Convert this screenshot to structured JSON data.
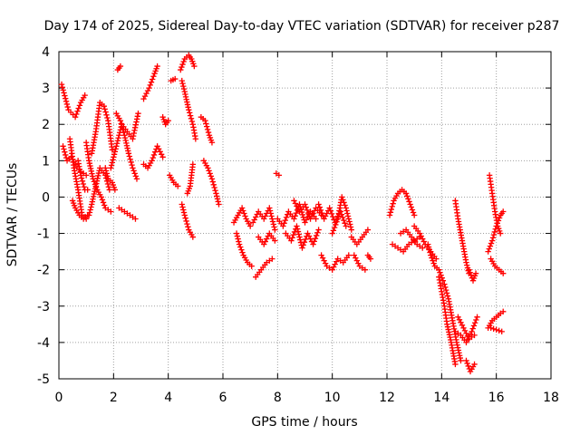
{
  "chart_data": {
    "type": "scatter",
    "title": "Day 174 of 2025, Sidereal Day-to-day VTEC variation (SDTVAR) for receiver p287",
    "xlabel": "GPS time / hours",
    "ylabel": "SDTVAR / TECUs",
    "xlim": [
      0,
      18
    ],
    "ylim": [
      -5,
      4
    ],
    "xticks": [
      "0",
      "2",
      "4",
      "6",
      "8",
      "10",
      "12",
      "14",
      "16",
      "18"
    ],
    "yticks": [
      "4",
      "3",
      "2",
      "1",
      "0",
      "-1",
      "-2",
      "-3",
      "-4",
      "-5"
    ],
    "grid": true,
    "marker": "+",
    "color": "#ff0000",
    "series": [
      {
        "name": "t1",
        "x": [
          0.1,
          0.35,
          0.6,
          0.8,
          0.95
        ],
        "y": [
          3.1,
          2.4,
          2.2,
          2.6,
          2.8
        ]
      },
      {
        "name": "t2",
        "x": [
          0.15,
          0.3,
          0.45,
          0.6,
          0.8,
          1.0
        ],
        "y": [
          1.4,
          1.0,
          1.1,
          0.9,
          0.7,
          0.6
        ]
      },
      {
        "name": "t3",
        "x": [
          0.4,
          0.55,
          0.7,
          0.85,
          1.0
        ],
        "y": [
          1.6,
          0.8,
          0.2,
          -0.5,
          -0.6
        ]
      },
      {
        "name": "t4",
        "x": [
          0.5,
          0.6,
          0.75,
          0.9,
          1.05
        ],
        "y": [
          -0.1,
          -0.3,
          -0.5,
          -0.6,
          -0.5
        ]
      },
      {
        "name": "t5",
        "x": [
          0.7,
          0.8,
          0.95,
          1.05
        ],
        "y": [
          1.0,
          0.6,
          0.2,
          0.2
        ]
      },
      {
        "name": "t6",
        "x": [
          1.1,
          1.2,
          1.35,
          1.5,
          1.7,
          1.85
        ],
        "y": [
          -0.5,
          -0.2,
          0.3,
          0.8,
          0.6,
          0.2
        ]
      },
      {
        "name": "t7",
        "x": [
          1.2,
          1.35,
          1.5,
          1.65,
          1.8,
          1.95
        ],
        "y": [
          1.2,
          1.8,
          2.6,
          2.5,
          2.1,
          1.3
        ]
      },
      {
        "name": "t8",
        "x": [
          1.0,
          1.1,
          1.25,
          1.4,
          1.55,
          1.7,
          1.9
        ],
        "y": [
          1.5,
          1.0,
          0.5,
          0.2,
          0.0,
          -0.3,
          -0.4
        ]
      },
      {
        "name": "t9",
        "x": [
          1.7,
          1.8,
          1.95,
          2.05
        ],
        "y": [
          0.8,
          0.5,
          0.4,
          0.2
        ]
      },
      {
        "name": "t10",
        "x": [
          1.9,
          2.1,
          2.3,
          2.5,
          2.7,
          2.9
        ],
        "y": [
          0.8,
          1.4,
          2.0,
          1.8,
          1.6,
          2.3
        ]
      },
      {
        "name": "t11",
        "x": [
          2.1,
          2.25,
          2.4,
          2.55,
          2.7,
          2.85
        ],
        "y": [
          2.3,
          2.1,
          1.7,
          1.2,
          0.8,
          0.5
        ]
      },
      {
        "name": "t12",
        "x": [
          2.2,
          2.4,
          2.6,
          2.8
        ],
        "y": [
          -0.3,
          -0.4,
          -0.5,
          -0.6
        ]
      },
      {
        "name": "t13",
        "x": [
          2.15,
          2.25
        ],
        "y": [
          3.5,
          3.6
        ]
      },
      {
        "name": "t14",
        "x": [
          3.1,
          3.3,
          3.5,
          3.6
        ],
        "y": [
          2.7,
          3.0,
          3.4,
          3.6
        ]
      },
      {
        "name": "t15",
        "x": [
          3.1,
          3.25,
          3.4,
          3.6,
          3.8
        ],
        "y": [
          0.9,
          0.8,
          1.0,
          1.4,
          1.1
        ]
      },
      {
        "name": "t16",
        "x": [
          3.8,
          3.9,
          4.0
        ],
        "y": [
          2.2,
          2.0,
          2.1
        ]
      },
      {
        "name": "t17",
        "x": [
          4.1,
          4.25
        ],
        "y": [
          3.2,
          3.25
        ]
      },
      {
        "name": "t18",
        "x": [
          4.05,
          4.2,
          4.35
        ],
        "y": [
          0.6,
          0.4,
          0.3
        ]
      },
      {
        "name": "t19",
        "x": [
          4.45,
          4.6,
          4.75,
          4.85,
          4.95
        ],
        "y": [
          3.5,
          3.8,
          3.9,
          3.8,
          3.6
        ]
      },
      {
        "name": "t20",
        "x": [
          4.5,
          4.6,
          4.75,
          4.9,
          5.0
        ],
        "y": [
          3.2,
          2.9,
          2.4,
          2.0,
          1.6
        ]
      },
      {
        "name": "t21",
        "x": [
          4.5,
          4.6,
          4.75,
          4.9
        ],
        "y": [
          -0.2,
          -0.5,
          -0.9,
          -1.1
        ]
      },
      {
        "name": "t22",
        "x": [
          4.7,
          4.8,
          4.9
        ],
        "y": [
          0.1,
          0.3,
          0.9
        ]
      },
      {
        "name": "t23",
        "x": [
          5.2,
          5.35,
          5.5,
          5.6
        ],
        "y": [
          2.2,
          2.1,
          1.7,
          1.5
        ]
      },
      {
        "name": "t24",
        "x": [
          5.3,
          5.45,
          5.6,
          5.75,
          5.85
        ],
        "y": [
          1.0,
          0.8,
          0.5,
          0.1,
          -0.2
        ]
      },
      {
        "name": "t25",
        "x": [
          6.4,
          6.55,
          6.7,
          6.85,
          7.0
        ],
        "y": [
          -0.7,
          -0.5,
          -0.3,
          -0.6,
          -0.8
        ]
      },
      {
        "name": "t26",
        "x": [
          6.5,
          6.6,
          6.75,
          6.9,
          7.05
        ],
        "y": [
          -1.0,
          -1.3,
          -1.6,
          -1.8,
          -1.9
        ]
      },
      {
        "name": "t27",
        "x": [
          7.1,
          7.3,
          7.5,
          7.7,
          7.9
        ],
        "y": [
          -0.7,
          -0.4,
          -0.6,
          -0.3,
          -0.9
        ]
      },
      {
        "name": "t28",
        "x": [
          7.2,
          7.4,
          7.6,
          7.8
        ],
        "y": [
          -2.2,
          -2.0,
          -1.8,
          -1.7
        ]
      },
      {
        "name": "t29",
        "x": [
          7.3,
          7.5,
          7.7,
          7.9
        ],
        "y": [
          -1.1,
          -1.3,
          -1.0,
          -1.2
        ]
      },
      {
        "name": "t30",
        "x": [
          7.95,
          8.05
        ],
        "y": [
          0.65,
          0.6
        ]
      },
      {
        "name": "t31",
        "x": [
          8.0,
          8.2,
          8.4,
          8.6,
          8.8,
          9.0,
          9.2,
          9.4
        ],
        "y": [
          -0.6,
          -0.8,
          -0.4,
          -0.6,
          -0.2,
          -0.7,
          -0.4,
          -0.6
        ]
      },
      {
        "name": "t32",
        "x": [
          8.3,
          8.5,
          8.7,
          8.9,
          9.1,
          9.3,
          9.5
        ],
        "y": [
          -1.0,
          -1.2,
          -0.8,
          -1.4,
          -1.0,
          -1.3,
          -0.9
        ]
      },
      {
        "name": "t33",
        "x": [
          8.6,
          8.8,
          9.0,
          9.2,
          9.4,
          9.6
        ],
        "y": [
          -0.1,
          -0.4,
          -0.2,
          -0.6,
          -0.3,
          -0.5
        ]
      },
      {
        "name": "t34",
        "x": [
          9.5,
          9.7,
          9.9,
          10.1,
          10.3,
          10.5
        ],
        "y": [
          -0.2,
          -0.6,
          -0.3,
          -0.7,
          -0.4,
          -0.8
        ]
      },
      {
        "name": "t35",
        "x": [
          9.6,
          9.8,
          10.0,
          10.2,
          10.4,
          10.6
        ],
        "y": [
          -1.6,
          -1.9,
          -2.0,
          -1.7,
          -1.8,
          -1.6
        ]
      },
      {
        "name": "t36",
        "x": [
          10.0,
          10.2,
          10.35,
          10.5,
          10.7
        ],
        "y": [
          -1.0,
          -0.6,
          0.0,
          -0.3,
          -0.9
        ]
      },
      {
        "name": "t37",
        "x": [
          10.7,
          10.9,
          11.1,
          11.3
        ],
        "y": [
          -1.1,
          -1.3,
          -1.1,
          -0.9
        ]
      },
      {
        "name": "t38",
        "x": [
          10.8,
          11.0,
          11.2
        ],
        "y": [
          -1.6,
          -1.9,
          -2.0
        ]
      },
      {
        "name": "t39",
        "x": [
          11.3,
          11.4
        ],
        "y": [
          -1.6,
          -1.7
        ]
      },
      {
        "name": "t40",
        "x": [
          12.1,
          12.25,
          12.4,
          12.55,
          12.7,
          12.85,
          13.0
        ],
        "y": [
          -0.5,
          -0.1,
          0.1,
          0.2,
          0.1,
          -0.2,
          -0.5
        ]
      },
      {
        "name": "t41",
        "x": [
          13.0,
          13.2,
          13.4,
          13.6,
          13.8
        ],
        "y": [
          -0.8,
          -1.0,
          -1.3,
          -1.5,
          -1.7
        ]
      },
      {
        "name": "t42",
        "x": [
          12.2,
          12.4,
          12.6,
          12.8,
          13.0,
          13.2
        ],
        "y": [
          -1.3,
          -1.4,
          -1.5,
          -1.3,
          -1.2,
          -1.1
        ]
      },
      {
        "name": "t43",
        "x": [
          12.5,
          12.7,
          12.9,
          13.1,
          13.3
        ],
        "y": [
          -1.0,
          -0.9,
          -1.1,
          -1.3,
          -1.4
        ]
      },
      {
        "name": "t44",
        "x": [
          13.5,
          13.6,
          13.75,
          13.9,
          14.05
        ],
        "y": [
          -1.3,
          -1.6,
          -1.9,
          -2.0,
          -2.3
        ]
      },
      {
        "name": "t45",
        "x": [
          13.9,
          14.0,
          14.1,
          14.2,
          14.35,
          14.5
        ],
        "y": [
          -2.2,
          -2.6,
          -3.0,
          -3.5,
          -4.0,
          -4.6
        ]
      },
      {
        "name": "t46",
        "x": [
          14.1,
          14.25,
          14.4,
          14.55,
          14.7
        ],
        "y": [
          -2.4,
          -2.8,
          -3.4,
          -4.0,
          -4.5
        ]
      },
      {
        "name": "t47",
        "x": [
          14.5,
          14.7,
          14.9,
          15.1,
          15.3
        ],
        "y": [
          -3.7,
          -3.8,
          -4.0,
          -3.7,
          -3.3
        ]
      },
      {
        "name": "t48",
        "x": [
          14.6,
          14.8,
          15.0,
          15.2
        ],
        "y": [
          -3.3,
          -3.6,
          -3.9,
          -3.8
        ]
      },
      {
        "name": "t49",
        "x": [
          14.9,
          15.05,
          15.2
        ],
        "y": [
          -4.5,
          -4.8,
          -4.6
        ]
      },
      {
        "name": "t50",
        "x": [
          14.5,
          14.6,
          14.75,
          14.9,
          15.0
        ],
        "y": [
          -0.1,
          -0.6,
          -1.2,
          -1.8,
          -2.1
        ]
      },
      {
        "name": "t51",
        "x": [
          15.0,
          15.15,
          15.25
        ],
        "y": [
          -2.0,
          -2.3,
          -2.1
        ]
      },
      {
        "name": "t52",
        "x": [
          15.75,
          15.85,
          15.95,
          16.05,
          16.15
        ],
        "y": [
          0.6,
          0.1,
          -0.4,
          -0.8,
          -1.0
        ]
      },
      {
        "name": "t53",
        "x": [
          15.8,
          15.95,
          16.1,
          16.25
        ],
        "y": [
          -1.7,
          -1.9,
          -2.0,
          -2.1
        ]
      },
      {
        "name": "t54",
        "x": [
          15.7,
          15.85,
          16.0,
          16.15,
          16.25
        ],
        "y": [
          -1.5,
          -1.2,
          -0.8,
          -0.5,
          -0.4
        ]
      },
      {
        "name": "t55",
        "x": [
          15.7,
          15.85,
          16.0,
          16.15,
          16.25
        ],
        "y": [
          -3.6,
          -3.4,
          -3.3,
          -3.2,
          -3.15
        ]
      },
      {
        "name": "t56",
        "x": [
          15.8,
          16.0,
          16.2
        ],
        "y": [
          -3.6,
          -3.65,
          -3.7
        ]
      }
    ]
  }
}
